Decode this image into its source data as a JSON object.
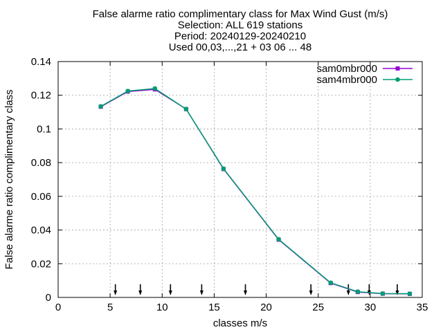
{
  "chart_data": {
    "type": "line",
    "title": [
      "False alarme ratio complimentary class  for Max Wind Gust (m/s)",
      "Selection: ALL    619 stations",
      "Period: 20240129-20240210",
      "Used 00,03,...,21 + 03 06 ... 48"
    ],
    "xlabel": "classes m/s",
    "ylabel": "False alarme ratio complimentary class",
    "xlim": [
      0,
      35
    ],
    "ylim": [
      0,
      0.14
    ],
    "xticks": [
      "0",
      "5",
      "10",
      "15",
      "20",
      "25",
      "30",
      "35"
    ],
    "yticks": [
      "0",
      "0.02",
      "0.04",
      "0.06",
      "0.08",
      "0.1",
      "0.12",
      "0.14"
    ],
    "grid": true,
    "legend_position": "top-right",
    "series": [
      {
        "name": "sam0mbr000",
        "color": "#9400d3",
        "x": [
          4.1,
          6.7,
          9.3,
          12.3,
          15.9,
          21.2,
          26.2,
          28.8,
          31.2,
          33.8
        ],
        "y": [
          0.1132,
          0.1222,
          0.1235,
          0.1118,
          0.0762,
          0.0343,
          0.0085,
          0.0032,
          0.0022,
          0.0021
        ]
      },
      {
        "name": "sam4mbr000",
        "color": "#009e73",
        "x": [
          4.1,
          6.7,
          9.3,
          12.3,
          15.9,
          21.2,
          26.2,
          28.8,
          31.2,
          33.8
        ],
        "y": [
          0.1134,
          0.1225,
          0.124,
          0.1118,
          0.0764,
          0.0345,
          0.0087,
          0.0034,
          0.0023,
          0.0022
        ]
      }
    ],
    "arrow_markers_x": [
      5.5,
      7.9,
      10.8,
      13.8,
      18.0,
      24.3,
      27.9,
      29.9,
      32.6
    ]
  }
}
